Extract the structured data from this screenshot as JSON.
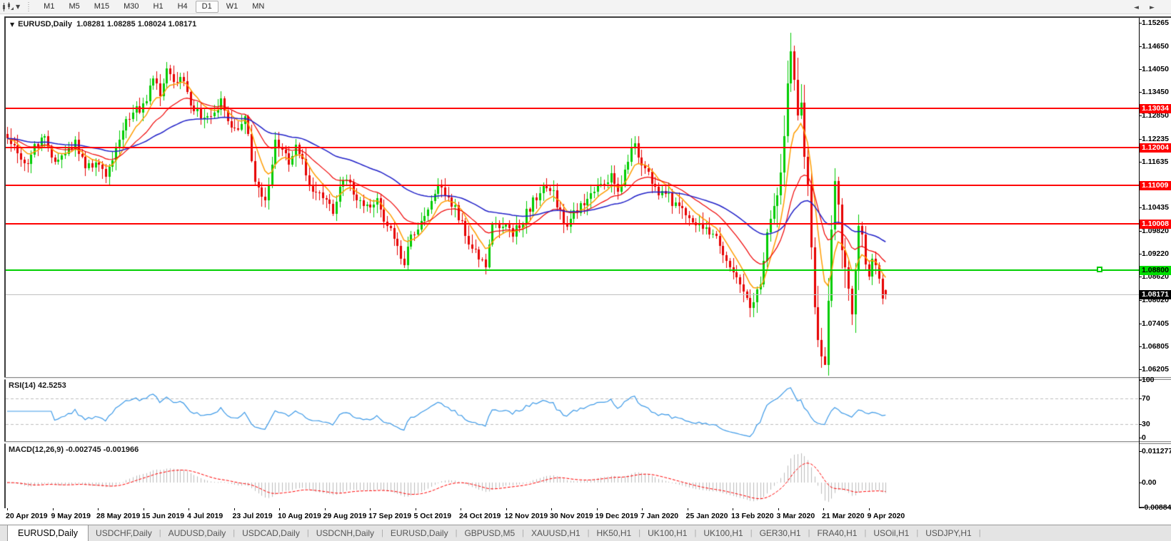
{
  "toolbar": {
    "chart_type_icon": "candlestick-chart-icon",
    "dropdown_icon": "chevron-down",
    "timeframes": [
      "M1",
      "M5",
      "M15",
      "M30",
      "H1",
      "H4",
      "D1",
      "W1",
      "MN"
    ],
    "active_timeframe": "D1"
  },
  "chart": {
    "expander_icon": "triangle-down",
    "symbol": "EURUSD,Daily",
    "quote_line": "1.08281 1.08285 1.08024 1.08171",
    "colors": {
      "candle_up": "#00cc00",
      "candle_down": "#e60000",
      "ma_fast": "#ff9d00",
      "ma_mid": "#f00000",
      "ma_slow": "#2020c8",
      "resistance_line": "#ff0000",
      "support_line": "#00d000",
      "current_price_line": "#c0c0c0",
      "rsi_line": "#3d9ae8",
      "rsi_levels": "#bdbdbd",
      "macd_histogram": "#bcbcbc",
      "macd_signal": "#ff0000"
    }
  },
  "rsi_panel": {
    "label": "RSI(14) 42.5253",
    "scale": [
      {
        "label": "100",
        "value": 100
      },
      {
        "label": "70",
        "value": 70
      },
      {
        "label": "30",
        "value": 30
      },
      {
        "label": "0",
        "value": 0
      }
    ],
    "dashed_levels": [
      70,
      30
    ]
  },
  "macd_panel": {
    "label": "MACD(12,26,9) -0.002745 -0.001966",
    "scale": [
      {
        "label": "0.011277",
        "value": 0.011277
      },
      {
        "label": "0.00",
        "value": 0
      },
      {
        "label": "-0.008845",
        "value": -0.008845
      }
    ]
  },
  "x_axis": {
    "dates": [
      "20 Apr 2019",
      "9 May 2019",
      "28 May 2019",
      "15 Jun 2019",
      "4 Jul 2019",
      "23 Jul 2019",
      "10 Aug 2019",
      "29 Aug 2019",
      "17 Sep 2019",
      "5 Oct 2019",
      "24 Oct 2019",
      "12 Nov 2019",
      "30 Nov 2019",
      "19 Dec 2019",
      "7 Jan 2020",
      "25 Jan 2020",
      "13 Feb 2020",
      "3 Mar 2020",
      "21 Mar 2020",
      "9 Apr 2020"
    ]
  },
  "tab_bar": {
    "tabs": [
      "EURUSD,Daily",
      "USDCHF,Daily",
      "AUDUSD,Daily",
      "USDCAD,Daily",
      "USDCNH,Daily",
      "EURUSD,Daily",
      "GBPUSD,M5",
      "XAUUSD,H1",
      "HK50,H1",
      "UK100,H1",
      "UK100,H1",
      "GER30,H1",
      "FRA40,H1",
      "USOil,H1",
      "USDJPY,H1"
    ],
    "active_index": 0,
    "scroll_left_icon": "◄",
    "scroll_right_icon": "►"
  },
  "chart_data": {
    "type": "candlestick",
    "symbol": "EURUSD",
    "timeframe": "Daily",
    "visible_range": {
      "start": "20 Apr 2019",
      "end": "9 Apr 2020"
    },
    "last_quote": {
      "open": 1.08281,
      "high": 1.08285,
      "low": 1.08024,
      "close": 1.08171
    },
    "y_axis_ticks": [
      1.15265,
      1.1465,
      1.1405,
      1.1345,
      1.1285,
      1.12235,
      1.11635,
      1.10435,
      1.0982,
      1.0922,
      1.0862,
      1.0802,
      1.07405,
      1.06805,
      1.06205
    ],
    "red_resistance_levels": [
      1.13034,
      1.12004,
      1.11009,
      1.10008
    ],
    "green_support_level": 1.088,
    "current_price": 1.08171,
    "num_candles": 260,
    "price_path_anchors": [
      [
        0,
        1.123
      ],
      [
        3,
        1.119
      ],
      [
        5,
        1.1155
      ],
      [
        8,
        1.12
      ],
      [
        11,
        1.123
      ],
      [
        14,
        1.116
      ],
      [
        17,
        1.1175
      ],
      [
        20,
        1.121
      ],
      [
        23,
        1.115
      ],
      [
        26,
        1.1165
      ],
      [
        29,
        1.113
      ],
      [
        31,
        1.117
      ],
      [
        34,
        1.125
      ],
      [
        37,
        1.129
      ],
      [
        40,
        1.131
      ],
      [
        43,
        1.137
      ],
      [
        45,
        1.1345
      ],
      [
        47,
        1.1398
      ],
      [
        49,
        1.137
      ],
      [
        51,
        1.139
      ],
      [
        54,
        1.131
      ],
      [
        57,
        1.128
      ],
      [
        60,
        1.129
      ],
      [
        63,
        1.132
      ],
      [
        65,
        1.127
      ],
      [
        68,
        1.124
      ],
      [
        70,
        1.128
      ],
      [
        73,
        1.112
      ],
      [
        75,
        1.106
      ],
      [
        77,
        1.109
      ],
      [
        79,
        1.121
      ],
      [
        81,
        1.12
      ],
      [
        83,
        1.115
      ],
      [
        85,
        1.12
      ],
      [
        87,
        1.117
      ],
      [
        89,
        1.11
      ],
      [
        91,
        1.109
      ],
      [
        94,
        1.106
      ],
      [
        96,
        1.103
      ],
      [
        98,
        1.11
      ],
      [
        100,
        1.111
      ],
      [
        103,
        1.107
      ],
      [
        106,
        1.104
      ],
      [
        109,
        1.107
      ],
      [
        111,
        1.101
      ],
      [
        113,
        1.099
      ],
      [
        115,
        1.093
      ],
      [
        117,
        1.09
      ],
      [
        119,
        1.096
      ],
      [
        121,
        1.099
      ],
      [
        124,
        1.104
      ],
      [
        127,
        1.11
      ],
      [
        130,
        1.107
      ],
      [
        133,
        1.102
      ],
      [
        136,
        1.096
      ],
      [
        139,
        1.092
      ],
      [
        141,
        1.089
      ],
      [
        143,
        1.099
      ],
      [
        146,
        1.1
      ],
      [
        149,
        1.098
      ],
      [
        152,
        1.101
      ],
      [
        155,
        1.106
      ],
      [
        158,
        1.109
      ],
      [
        161,
        1.108
      ],
      [
        164,
        1.1
      ],
      [
        166,
        1.101
      ],
      [
        169,
        1.105
      ],
      [
        172,
        1.1075
      ],
      [
        175,
        1.111
      ],
      [
        178,
        1.112
      ],
      [
        180,
        1.108
      ],
      [
        183,
        1.1175
      ],
      [
        185,
        1.121
      ],
      [
        187,
        1.116
      ],
      [
        189,
        1.113
      ],
      [
        191,
        1.109
      ],
      [
        194,
        1.108
      ],
      [
        197,
        1.105
      ],
      [
        200,
        1.102
      ],
      [
        203,
        1.1
      ],
      [
        206,
        1.099
      ],
      [
        209,
        1.096
      ],
      [
        212,
        1.0915
      ],
      [
        215,
        1.087
      ],
      [
        218,
        1.08
      ],
      [
        220,
        1.0785
      ],
      [
        222,
        1.085
      ],
      [
        224,
        1.098
      ],
      [
        226,
        1.107
      ],
      [
        228,
        1.113
      ],
      [
        230,
        1.135
      ],
      [
        231,
        1.145
      ],
      [
        232,
        1.138
      ],
      [
        233,
        1.128
      ],
      [
        234,
        1.131
      ],
      [
        235,
        1.118
      ],
      [
        236,
        1.108
      ],
      [
        237,
        1.096
      ],
      [
        238,
        1.078
      ],
      [
        239,
        1.07
      ],
      [
        241,
        1.065
      ],
      [
        242,
        1.08
      ],
      [
        243,
        1.1
      ],
      [
        244,
        1.11
      ],
      [
        245,
        1.105
      ],
      [
        246,
        1.095
      ],
      [
        247,
        1.088
      ],
      [
        248,
        1.082
      ],
      [
        249,
        1.078
      ],
      [
        250,
        1.09
      ],
      [
        251,
        1.099
      ],
      [
        252,
        1.096
      ],
      [
        253,
        1.09
      ],
      [
        254,
        1.087
      ],
      [
        255,
        1.092
      ],
      [
        256,
        1.09
      ],
      [
        257,
        1.086
      ],
      [
        258,
        1.08
      ],
      [
        259,
        1.0817
      ]
    ],
    "key_candles": [
      {
        "index": 231,
        "high": 1.15
      },
      {
        "index": 241,
        "low": 1.065
      },
      {
        "index": 259,
        "open": 1.08281,
        "high": 1.08285,
        "low": 1.08024,
        "close": 1.08171
      }
    ],
    "volatility_zones": [
      [
        226,
        252,
        2.2
      ]
    ],
    "moving_averages": [
      {
        "period": 8,
        "color": "#ff9d00"
      },
      {
        "period": 21,
        "color": "#f00000"
      },
      {
        "period": 55,
        "color": "#2020c8"
      }
    ],
    "rsi": {
      "period": 14,
      "current": 42.5253,
      "levels": [
        70,
        30
      ],
      "range": [
        0,
        100
      ]
    },
    "macd": {
      "fast": 12,
      "slow": 26,
      "signal": 9,
      "current": [
        -0.002745,
        -0.001966
      ],
      "scale_max": 0.011277,
      "scale_min": -0.008845
    }
  }
}
